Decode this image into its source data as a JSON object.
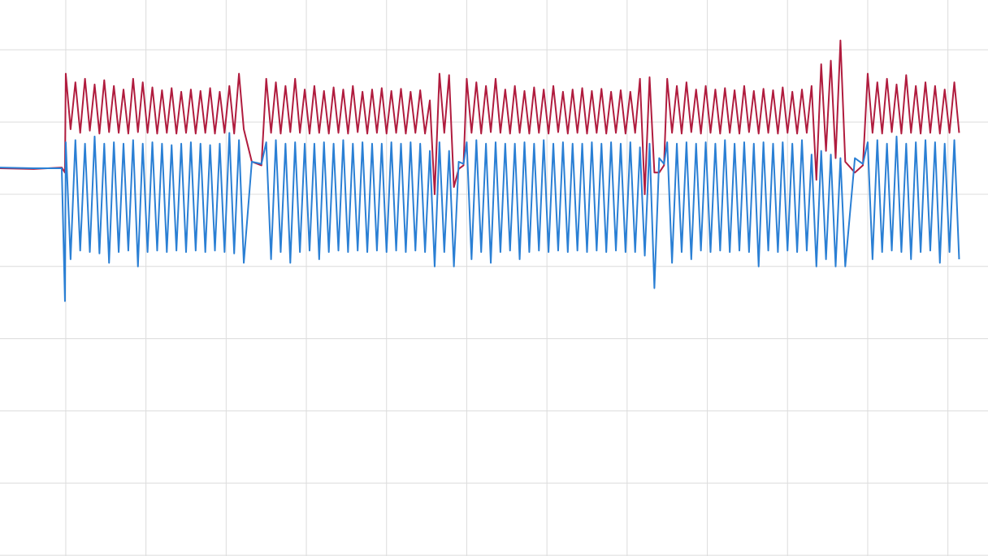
{
  "chart_data": {
    "type": "line",
    "xlim": [
      -0.82,
      11.5
    ],
    "ylim": [
      -4.01,
      3.69
    ],
    "xticks": [
      0,
      1,
      2,
      3,
      4,
      5,
      6,
      7,
      8,
      9,
      10,
      11
    ],
    "yticks": [
      -4,
      -3,
      -2,
      -1,
      0,
      1,
      2,
      3
    ],
    "grid": true,
    "x": [
      -0.82,
      -0.4,
      -0.05,
      -0.01,
      0,
      0.06,
      0.12,
      0.18,
      0.24,
      0.3,
      0.36,
      0.42,
      0.48,
      0.54,
      0.6,
      0.66,
      0.72,
      0.78,
      0.84,
      0.9,
      0.96,
      1.02,
      1.08,
      1.14,
      1.2,
      1.26,
      1.32,
      1.38,
      1.44,
      1.5,
      1.56,
      1.62,
      1.68,
      1.74,
      1.8,
      1.86,
      1.92,
      1.98,
      2.04,
      2.1,
      2.16,
      2.22,
      2.32,
      2.44,
      2.5,
      2.56,
      2.62,
      2.68,
      2.74,
      2.8,
      2.86,
      2.92,
      2.98,
      3.04,
      3.1,
      3.16,
      3.22,
      3.28,
      3.34,
      3.4,
      3.46,
      3.52,
      3.58,
      3.64,
      3.7,
      3.76,
      3.82,
      3.88,
      3.94,
      4,
      4.06,
      4.12,
      4.18,
      4.24,
      4.3,
      4.36,
      4.42,
      4.48,
      4.54,
      4.6,
      4.66,
      4.72,
      4.78,
      4.84,
      4.9,
      4.96,
      5,
      5.06,
      5.12,
      5.18,
      5.24,
      5.3,
      5.36,
      5.42,
      5.48,
      5.54,
      5.6,
      5.66,
      5.72,
      5.78,
      5.84,
      5.9,
      5.96,
      6.02,
      6.08,
      6.14,
      6.2,
      6.26,
      6.32,
      6.38,
      6.44,
      6.5,
      6.56,
      6.62,
      6.68,
      6.74,
      6.8,
      6.86,
      6.92,
      6.98,
      7.04,
      7.1,
      7.16,
      7.22,
      7.28,
      7.34,
      7.4,
      7.46,
      7.5,
      7.56,
      7.62,
      7.68,
      7.74,
      7.8,
      7.86,
      7.92,
      7.98,
      8.04,
      8.1,
      8.16,
      8.22,
      8.28,
      8.34,
      8.4,
      8.46,
      8.52,
      8.58,
      8.64,
      8.7,
      8.76,
      8.82,
      8.88,
      8.94,
      9,
      9.06,
      9.12,
      9.18,
      9.24,
      9.3,
      9.36,
      9.42,
      9.48,
      9.54,
      9.6,
      9.66,
      9.72,
      9.84,
      9.94,
      10,
      10.06,
      10.12,
      10.18,
      10.24,
      10.3,
      10.36,
      10.42,
      10.48,
      10.54,
      10.6,
      10.66,
      10.72,
      10.78,
      10.84,
      10.9,
      10.96,
      11.02,
      11.08,
      11.14
    ],
    "series": [
      {
        "color": "#b01c3e",
        "values": [
          1.36,
          1.35,
          1.37,
          1.3,
          2.67,
          1.9,
          2.55,
          1.85,
          2.6,
          1.88,
          2.52,
          1.84,
          2.58,
          1.86,
          2.5,
          1.85,
          2.45,
          1.84,
          2.6,
          1.86,
          2.55,
          1.85,
          2.48,
          1.84,
          2.44,
          1.85,
          2.47,
          1.84,
          2.42,
          1.85,
          2.45,
          1.84,
          2.43,
          1.85,
          2.47,
          1.84,
          2.42,
          1.85,
          2.5,
          1.84,
          2.67,
          1.9,
          1.45,
          1.4,
          2.6,
          1.85,
          2.55,
          1.84,
          2.5,
          1.86,
          2.6,
          1.85,
          2.45,
          1.84,
          2.5,
          1.85,
          2.43,
          1.84,
          2.48,
          1.85,
          2.45,
          1.84,
          2.5,
          1.86,
          2.42,
          1.84,
          2.45,
          1.85,
          2.47,
          1.84,
          2.43,
          1.85,
          2.46,
          1.84,
          2.42,
          1.85,
          2.44,
          1.84,
          2.3,
          1.0,
          2.67,
          1.85,
          2.65,
          1.1,
          1.35,
          1.4,
          2.6,
          1.85,
          2.55,
          1.84,
          2.5,
          1.86,
          2.6,
          1.85,
          2.45,
          1.84,
          2.5,
          1.85,
          2.43,
          1.84,
          2.48,
          1.85,
          2.45,
          1.84,
          2.5,
          1.86,
          2.42,
          1.84,
          2.45,
          1.85,
          2.47,
          1.84,
          2.43,
          1.85,
          2.46,
          1.84,
          2.42,
          1.85,
          2.44,
          1.84,
          2.42,
          1.85,
          2.6,
          1.0,
          2.62,
          1.3,
          1.3,
          1.4,
          2.6,
          1.85,
          2.5,
          1.84,
          2.55,
          1.86,
          2.45,
          1.84,
          2.5,
          1.85,
          2.45,
          1.84,
          2.47,
          1.85,
          2.44,
          1.84,
          2.5,
          1.86,
          2.43,
          1.84,
          2.46,
          1.85,
          2.44,
          1.84,
          2.48,
          1.85,
          2.42,
          1.84,
          2.45,
          1.85,
          2.5,
          1.2,
          2.8,
          1.6,
          2.85,
          1.5,
          3.13,
          1.45,
          1.3,
          1.4,
          2.67,
          1.85,
          2.55,
          1.84,
          2.6,
          1.86,
          2.52,
          1.84,
          2.65,
          1.85,
          2.5,
          1.84,
          2.55,
          1.85,
          2.5,
          1.84,
          2.45,
          1.85,
          2.55,
          1.85
        ]
      },
      {
        "color": "#2a7fd4",
        "values": [
          1.37,
          1.36,
          1.36,
          -0.48,
          1.72,
          0.1,
          1.75,
          0.22,
          1.7,
          0.2,
          1.8,
          0.18,
          1.7,
          0.05,
          1.72,
          0.2,
          1.7,
          0.22,
          1.75,
          0.0,
          1.7,
          0.2,
          1.72,
          0.22,
          1.7,
          0.2,
          1.68,
          0.22,
          1.7,
          0.2,
          1.72,
          0.22,
          1.7,
          0.2,
          1.68,
          0.22,
          1.7,
          0.2,
          1.85,
          0.18,
          1.75,
          0.05,
          1.45,
          1.42,
          1.72,
          0.1,
          1.75,
          0.2,
          1.7,
          0.05,
          1.72,
          0.2,
          1.7,
          0.22,
          1.7,
          0.1,
          1.72,
          0.2,
          1.7,
          0.22,
          1.75,
          0.2,
          1.7,
          0.22,
          1.72,
          0.2,
          1.7,
          0.22,
          1.7,
          0.2,
          1.72,
          0.22,
          1.7,
          0.2,
          1.72,
          0.22,
          1.7,
          0.2,
          1.6,
          0.0,
          1.72,
          0.2,
          1.6,
          0.0,
          1.45,
          1.42,
          1.72,
          0.1,
          1.75,
          0.2,
          1.7,
          0.05,
          1.72,
          0.2,
          1.7,
          0.22,
          1.7,
          0.1,
          1.72,
          0.2,
          1.7,
          0.22,
          1.75,
          0.2,
          1.7,
          0.22,
          1.72,
          0.2,
          1.7,
          0.22,
          1.7,
          0.2,
          1.72,
          0.22,
          1.7,
          0.2,
          1.72,
          0.22,
          1.7,
          0.2,
          1.72,
          0.2,
          1.65,
          0.15,
          1.7,
          -0.3,
          1.5,
          1.42,
          1.72,
          0.05,
          1.7,
          0.2,
          1.72,
          0.1,
          1.7,
          0.22,
          1.72,
          0.2,
          1.7,
          0.22,
          1.75,
          0.2,
          1.7,
          0.22,
          1.72,
          0.2,
          1.7,
          0.0,
          1.72,
          0.22,
          1.7,
          0.2,
          1.72,
          0.22,
          1.7,
          0.2,
          1.75,
          0.22,
          1.55,
          0.0,
          1.6,
          0.1,
          1.55,
          0.0,
          1.5,
          0.0,
          1.5,
          1.42,
          1.72,
          0.1,
          1.75,
          0.2,
          1.7,
          0.22,
          1.8,
          0.2,
          1.7,
          0.1,
          1.72,
          0.2,
          1.75,
          0.22,
          1.72,
          0.05,
          1.7,
          0.2,
          1.75,
          0.1
        ]
      }
    ]
  }
}
